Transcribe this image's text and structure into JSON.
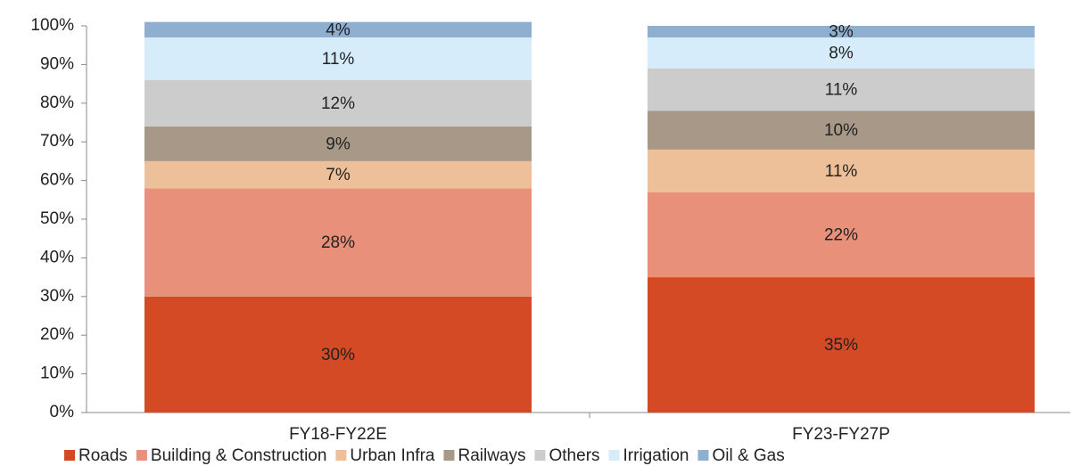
{
  "chart_data": {
    "type": "stacked_bar",
    "categories": [
      "FY18-FY22E",
      "FY23-FY27P"
    ],
    "series": [
      {
        "name": "Roads",
        "color": "#d34a24",
        "values": [
          30,
          35
        ],
        "value_labels": [
          "30%",
          "35%"
        ]
      },
      {
        "name": "Building & Construction",
        "color": "#e8907a",
        "values": [
          28,
          22
        ],
        "value_labels": [
          "28%",
          "22%"
        ]
      },
      {
        "name": "Urban Infra",
        "color": "#eec09a",
        "values": [
          7,
          11
        ],
        "value_labels": [
          "7%",
          "11%"
        ]
      },
      {
        "name": "Railways",
        "color": "#a89888",
        "values": [
          9,
          10
        ],
        "value_labels": [
          "9%",
          "10%"
        ]
      },
      {
        "name": "Others",
        "color": "#cccccc",
        "values": [
          12,
          11
        ],
        "value_labels": [
          "12%",
          "11%"
        ]
      },
      {
        "name": "Irrigation",
        "color": "#d6ecfa",
        "values": [
          11,
          8
        ],
        "value_labels": [
          "11%",
          "8%"
        ]
      },
      {
        "name": "Oil & Gas",
        "color": "#8fafd0",
        "values": [
          4,
          3
        ],
        "value_labels": [
          "4%",
          "3%"
        ]
      }
    ],
    "ylim": [
      0,
      100
    ],
    "yticks": [
      {
        "value": 0,
        "label": "0%"
      },
      {
        "value": 10,
        "label": "10%"
      },
      {
        "value": 20,
        "label": "20%"
      },
      {
        "value": 30,
        "label": "30%"
      },
      {
        "value": 40,
        "label": "40%"
      },
      {
        "value": 50,
        "label": "50%"
      },
      {
        "value": 60,
        "label": "60%"
      },
      {
        "value": 70,
        "label": "70%"
      },
      {
        "value": 80,
        "label": "80%"
      },
      {
        "value": 90,
        "label": "90%"
      },
      {
        "value": 100,
        "label": "100%"
      }
    ],
    "legend": "bottom"
  }
}
